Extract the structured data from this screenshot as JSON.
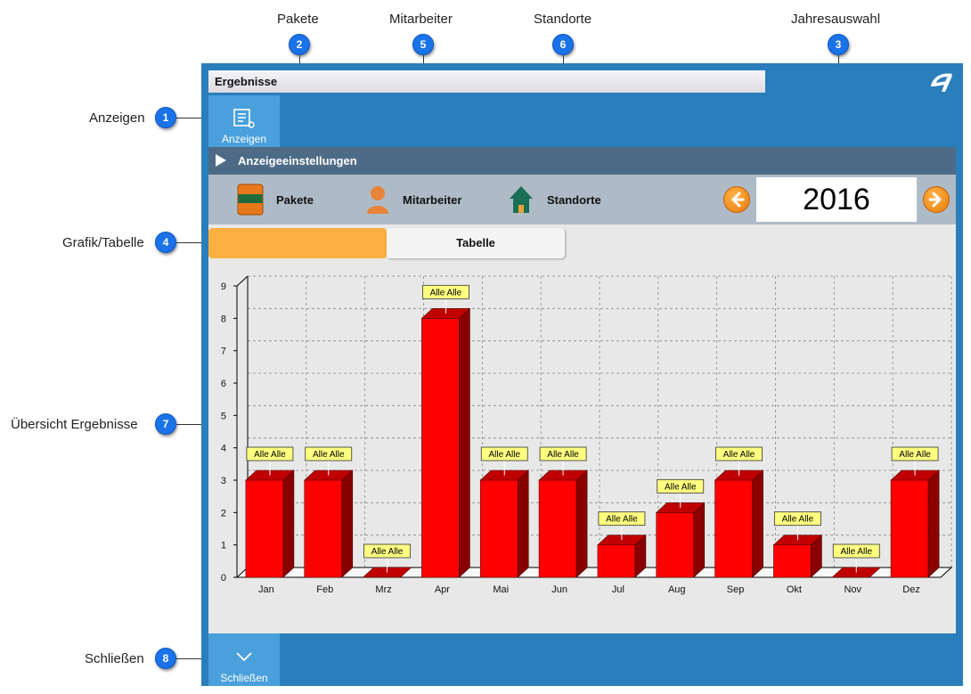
{
  "callouts": [
    {
      "num": "1",
      "label": "Anzeigen"
    },
    {
      "num": "2",
      "label": "Pakete"
    },
    {
      "num": "3",
      "label": "Jahresauswahl"
    },
    {
      "num": "4",
      "label": "Grafik/Tabelle"
    },
    {
      "num": "5",
      "label": "Mitarbeiter"
    },
    {
      "num": "6",
      "label": "Standorte"
    },
    {
      "num": "7",
      "label": "Übersicht Ergebnisse"
    },
    {
      "num": "8",
      "label": "Schließen"
    }
  ],
  "window": {
    "title": "Ergebnisse",
    "logo_icon": "app-logo-icon"
  },
  "toolbar": {
    "anzeigen_label": "Anzeigen",
    "schliessen_label": "Schließen"
  },
  "settings": {
    "header": "Anzeigeeinstellungen",
    "pakete": "Pakete",
    "mitarbeiter": "Mitarbeiter",
    "standorte": "Standorte",
    "year": "2016"
  },
  "tabs": {
    "grafik": "",
    "tabelle": "Tabelle"
  },
  "colors": {
    "window_bg": "#2a7ebb",
    "bar": "#ff0000",
    "tab_active": "#fbb040"
  },
  "chart_data": {
    "type": "bar",
    "categories": [
      "Jan",
      "Feb",
      "Mrz",
      "Apr",
      "Mai",
      "Jun",
      "Jul",
      "Aug",
      "Sep",
      "Okt",
      "Nov",
      "Dez"
    ],
    "values": [
      3,
      3,
      0,
      8,
      3,
      3,
      1,
      2,
      3,
      1,
      0,
      3
    ],
    "data_labels": [
      "Alle Alle",
      "Alle Alle",
      "Alle Alle",
      "Alle Alle",
      "Alle Alle",
      "Alle Alle",
      "Alle Alle",
      "Alle Alle",
      "Alle Alle",
      "Alle Alle",
      "Alle Alle",
      "Alle Alle"
    ],
    "yticks": [
      "0",
      "1",
      "2",
      "3",
      "4",
      "5",
      "6",
      "7",
      "8",
      "9"
    ],
    "ylim": [
      0,
      9
    ],
    "grid": true,
    "title": "",
    "xlabel": "",
    "ylabel": ""
  }
}
